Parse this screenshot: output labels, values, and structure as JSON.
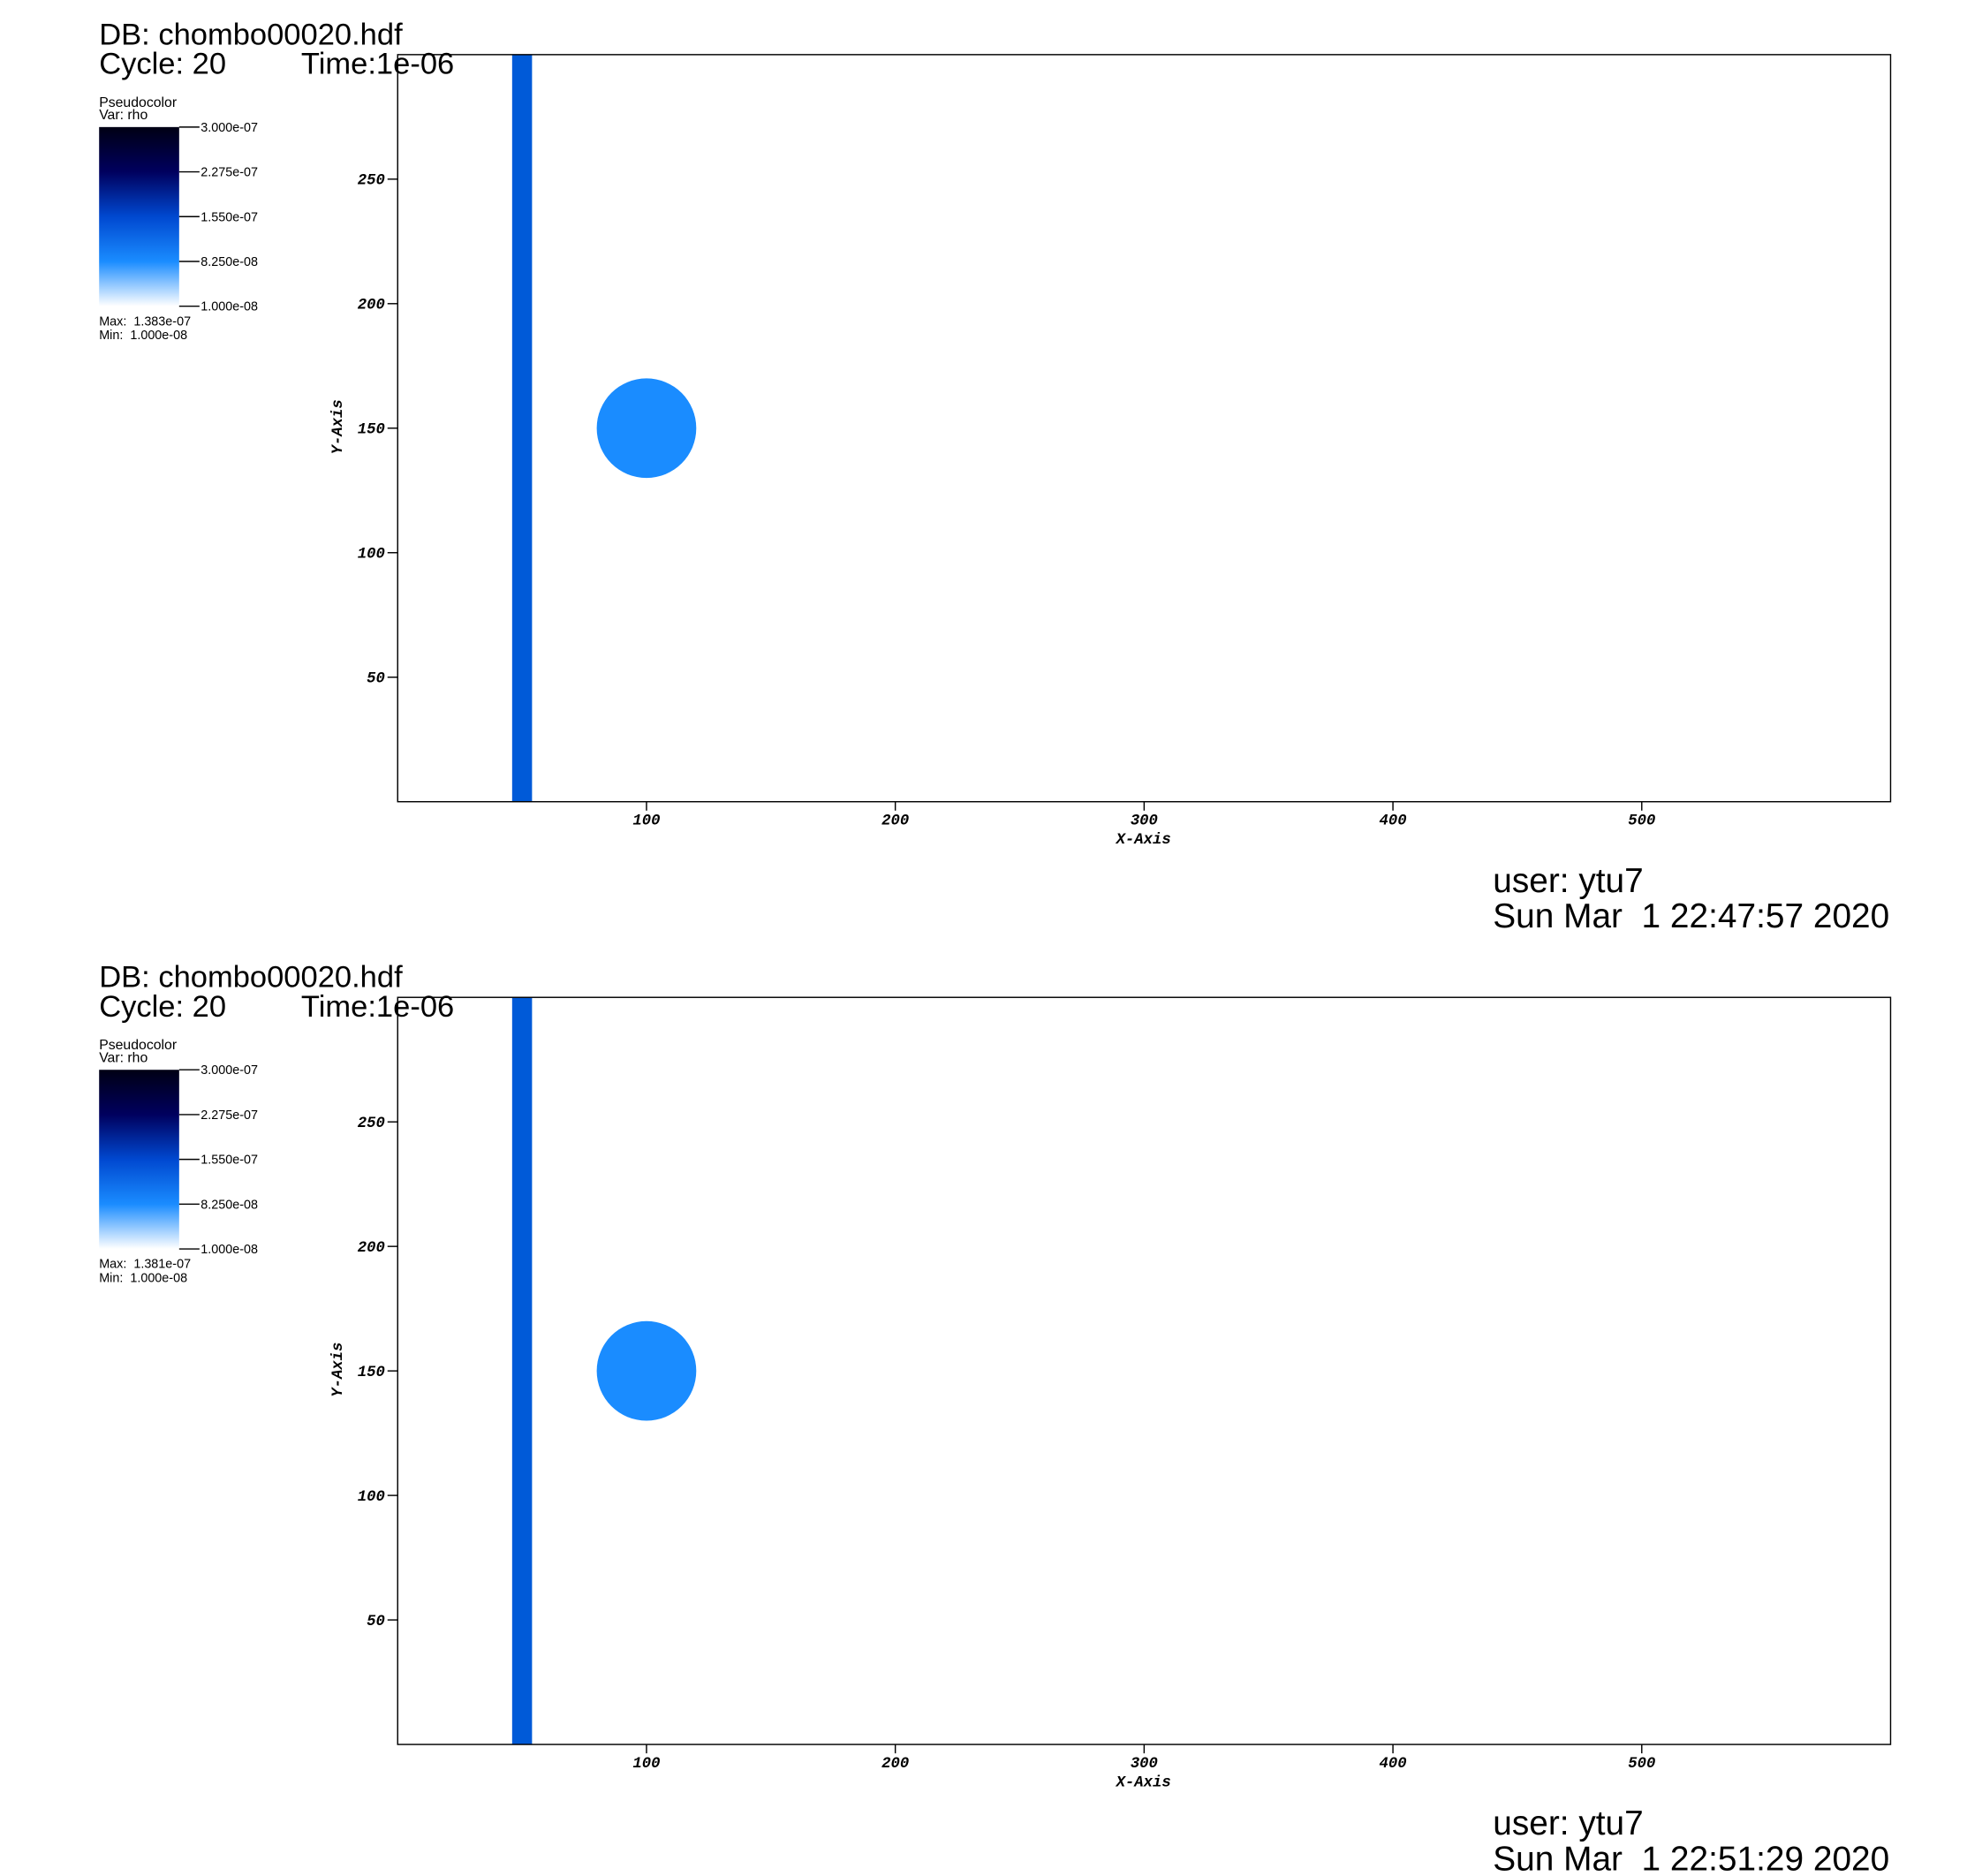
{
  "chart_data": [
    {
      "type": "pseudocolor",
      "db": "DB: chombo00020.hdf",
      "cycle": "Cycle: 20",
      "time": "Time:1e-06",
      "plot_name": "Pseudocolor",
      "var": "Var: rho",
      "colorbar_lim": [
        1e-08,
        3e-07
      ],
      "colorbar_ticks": [
        {
          "value": 3e-07,
          "label": "3.000e-07"
        },
        {
          "value": 2.275e-07,
          "label": "2.275e-07"
        },
        {
          "value": 1.55e-07,
          "label": "1.550e-07"
        },
        {
          "value": 8.25e-08,
          "label": "8.250e-08"
        },
        {
          "value": 1e-08,
          "label": "1.000e-08"
        }
      ],
      "colormap": [
        "#ffffff",
        "#1a8cff",
        "#0048d0",
        "#00005e",
        "#000014"
      ],
      "max_label": "Max:  1.383e-07",
      "min_label": "Min:  1.000e-08",
      "xlabel": "X-Axis",
      "ylabel": "Y-Axis",
      "xlim": [
        0,
        600
      ],
      "ylim": [
        0,
        300
      ],
      "xticks": [
        100,
        200,
        300,
        400,
        500
      ],
      "yticks": [
        50,
        100,
        150,
        200,
        250
      ],
      "band": {
        "x0": 46,
        "x1": 54,
        "color": "#005ad8"
      },
      "circle": {
        "cx": 100,
        "cy": 150,
        "r": 20,
        "color": "#1a8cff"
      },
      "user": "user: ytu7",
      "date": "Sun Mar  1 22:47:57 2020"
    },
    {
      "type": "pseudocolor",
      "db": "DB: chombo00020.hdf",
      "cycle": "Cycle: 20",
      "time": "Time:1e-06",
      "plot_name": "Pseudocolor",
      "var": "Var: rho",
      "colorbar_lim": [
        1e-08,
        3e-07
      ],
      "colorbar_ticks": [
        {
          "value": 3e-07,
          "label": "3.000e-07"
        },
        {
          "value": 2.275e-07,
          "label": "2.275e-07"
        },
        {
          "value": 1.55e-07,
          "label": "1.550e-07"
        },
        {
          "value": 8.25e-08,
          "label": "8.250e-08"
        },
        {
          "value": 1e-08,
          "label": "1.000e-08"
        }
      ],
      "colormap": [
        "#ffffff",
        "#1a8cff",
        "#0048d0",
        "#00005e",
        "#000014"
      ],
      "max_label": "Max:  1.381e-07",
      "min_label": "Min:  1.000e-08",
      "xlabel": "X-Axis",
      "ylabel": "Y-Axis",
      "xlim": [
        0,
        600
      ],
      "ylim": [
        0,
        300
      ],
      "xticks": [
        100,
        200,
        300,
        400,
        500
      ],
      "yticks": [
        50,
        100,
        150,
        200,
        250
      ],
      "band": {
        "x0": 46,
        "x1": 54,
        "color": "#005ad8"
      },
      "circle": {
        "cx": 100,
        "cy": 150,
        "r": 20,
        "color": "#1a8cff"
      },
      "user": "user: ytu7",
      "date": "Sun Mar  1 22:51:29 2020"
    }
  ]
}
